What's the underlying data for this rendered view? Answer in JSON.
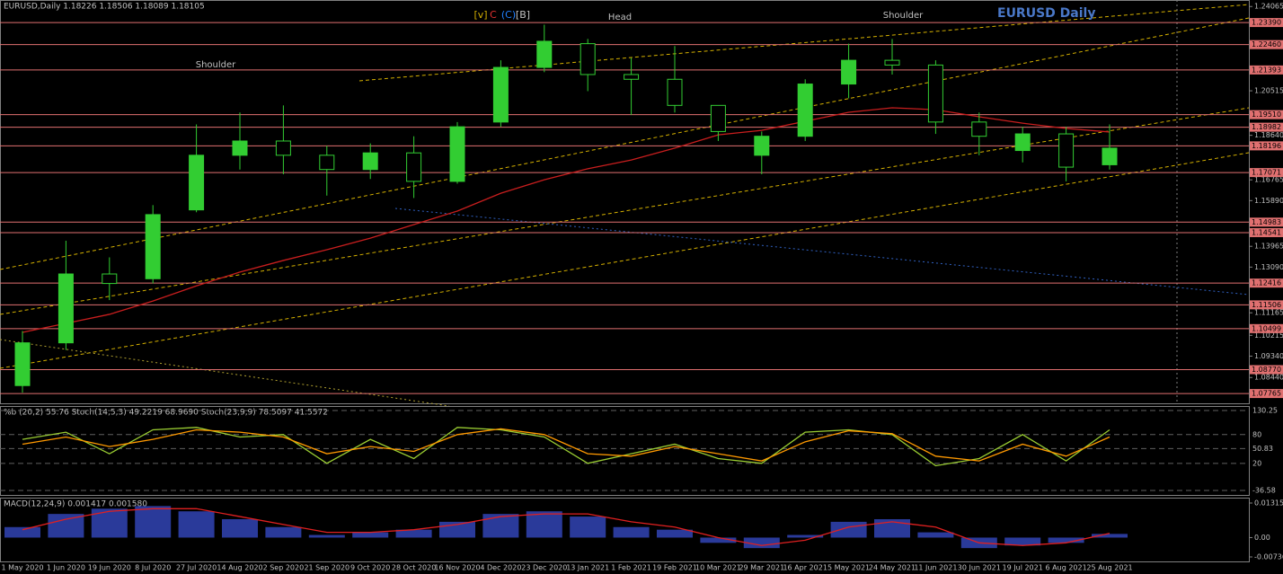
{
  "chart_data": {
    "type": "candlestick",
    "header": "EURUSD,Daily  1.18226 1.18506 1.18089 1.18105",
    "title": "EURUSD Daily",
    "annotations": [
      "Shoulder",
      "Head",
      "Shoulder",
      "[v]",
      "C",
      "(C)",
      "[B]"
    ],
    "categories": [
      "1 May 2020",
      "1 Jun 2020",
      "19 Jun 2020",
      "8 Jul 2020",
      "27 Jul 2020",
      "14 Aug 2020",
      "2 Sep 2020",
      "21 Sep 2020",
      "9 Oct 2020",
      "28 Oct 2020",
      "16 Nov 2020",
      "4 Dec 2020",
      "23 Dec 2020",
      "13 Jan 2021",
      "1 Feb 2021",
      "19 Feb 2021",
      "10 Mar 2021",
      "29 Mar 2021",
      "16 Apr 2021",
      "5 May 2021",
      "24 May 2021",
      "11 Jun 2021",
      "30 Jun 2021",
      "19 Jul 2021",
      "6 Aug 2021",
      "25 Aug 2021"
    ],
    "open": [
      1.081,
      1.099,
      1.128,
      1.126,
      1.155,
      1.178,
      1.184,
      1.178,
      1.172,
      1.179,
      1.167,
      1.192,
      1.215,
      1.225,
      1.212,
      1.21,
      1.199,
      1.178,
      1.186,
      1.208,
      1.218,
      1.216,
      1.192,
      1.18,
      1.187,
      1.174
    ],
    "high": [
      1.104,
      1.142,
      1.135,
      1.157,
      1.191,
      1.196,
      1.199,
      1.182,
      1.183,
      1.186,
      1.192,
      1.218,
      1.233,
      1.227,
      1.219,
      1.224,
      1.199,
      1.188,
      1.21,
      1.225,
      1.227,
      1.218,
      1.196,
      1.19,
      1.19,
      1.191
    ],
    "low": [
      1.078,
      1.096,
      1.117,
      1.124,
      1.154,
      1.172,
      1.17,
      1.161,
      1.168,
      1.16,
      1.166,
      1.19,
      1.213,
      1.205,
      1.195,
      1.196,
      1.184,
      1.17,
      1.184,
      1.202,
      1.212,
      1.187,
      1.178,
      1.175,
      1.167,
      1.172
    ],
    "close": [
      1.099,
      1.128,
      1.124,
      1.153,
      1.178,
      1.184,
      1.178,
      1.172,
      1.179,
      1.167,
      1.19,
      1.215,
      1.226,
      1.212,
      1.21,
      1.199,
      1.188,
      1.186,
      1.208,
      1.218,
      1.216,
      1.192,
      1.186,
      1.187,
      1.173,
      1.181
    ],
    "up_color": "#32cd32",
    "down_color": "#000000",
    "wick_color": "#32cd32",
    "moving_average": {
      "color": "#c81e1e",
      "values": [
        1.1034,
        1.1072,
        1.111,
        1.1166,
        1.123,
        1.1288,
        1.1337,
        1.1382,
        1.1431,
        1.1488,
        1.1545,
        1.162,
        1.1677,
        1.1723,
        1.176,
        1.181,
        1.1866,
        1.1885,
        1.1923,
        1.1961,
        1.198,
        1.1972,
        1.1942,
        1.1915,
        1.1893,
        1.1878
      ]
    },
    "ylim": [
      1.0739,
      1.2415
    ],
    "yticks": [
      1.24065,
      1.20515,
      {
        "value": 1.1864,
        "label": "1.18640"
      },
      1.16765,
      {
        "value": 1.1589,
        "label": "1.15890"
      },
      1.13965,
      {
        "value": 1.1309,
        "label": "1.13090"
      },
      1.11165,
      1.10215,
      {
        "value": 1.0934,
        "label": "1.09340"
      },
      {
        "value": 1.0844,
        "label": "1.08440"
      }
    ],
    "levels": [
      {
        "value": 1.2339,
        "label": "1.23390"
      },
      {
        "value": 1.2246,
        "label": "1.22460"
      },
      1.21393,
      {
        "value": 1.1951,
        "label": "1.19510"
      },
      1.18982,
      1.18196,
      1.17071,
      1.14983,
      1.14541,
      1.12416,
      {
        "value": 1.115,
        "label": "1.11506"
      },
      1.10499,
      {
        "value": 1.0877,
        "label": "1.08770"
      },
      1.07765
    ],
    "level_color": "#e07070",
    "stochastic": {
      "label": "%b (20,2) 55.76  Stoch(14,5,3) 49.2219 68.9690  Stoch(23,9,9) 78.5097 41.5572",
      "ylim": [
        -36.58,
        130.25
      ],
      "yticks": [
        130.25,
        80,
        50.83,
        20,
        -36.58
      ],
      "series": [
        {
          "color": "#9acd32",
          "values": [
            70,
            85,
            40,
            90,
            95,
            75,
            80,
            20,
            70,
            30,
            95,
            90,
            75,
            20,
            40,
            60,
            30,
            20,
            85,
            90,
            80,
            15,
            30,
            80,
            25,
            90
          ]
        },
        {
          "color": "#ff9900",
          "values": [
            60,
            75,
            55,
            70,
            90,
            85,
            75,
            40,
            55,
            45,
            80,
            92,
            80,
            40,
            35,
            55,
            40,
            25,
            65,
            88,
            82,
            35,
            25,
            60,
            35,
            75
          ]
        }
      ]
    },
    "macd": {
      "label": "MACD(12,24,9) 0.001417 0.001580",
      "ylim": [
        -0.007362,
        0.01315
      ],
      "yticks": [
        0.01315,
        {
          "value": 0,
          "label": "0.00"
        },
        -0.007362
      ],
      "histogram_color": "#2a3a9a",
      "histogram": [
        0.004,
        0.009,
        0.011,
        0.012,
        0.01,
        0.007,
        0.004,
        0.001,
        0.002,
        0.003,
        0.006,
        0.009,
        0.01,
        0.008,
        0.004,
        0.003,
        -0.002,
        -0.004,
        0.001,
        0.006,
        0.007,
        0.002,
        -0.004,
        -0.003,
        -0.002,
        0.0014
      ],
      "signal_color": "#e02020",
      "signal": [
        0.003,
        0.007,
        0.01,
        0.011,
        0.011,
        0.008,
        0.005,
        0.002,
        0.002,
        0.003,
        0.005,
        0.008,
        0.009,
        0.009,
        0.006,
        0.004,
        0.0,
        -0.003,
        -0.001,
        0.004,
        0.006,
        0.004,
        -0.002,
        -0.003,
        -0.002,
        0.0016
      ]
    }
  }
}
